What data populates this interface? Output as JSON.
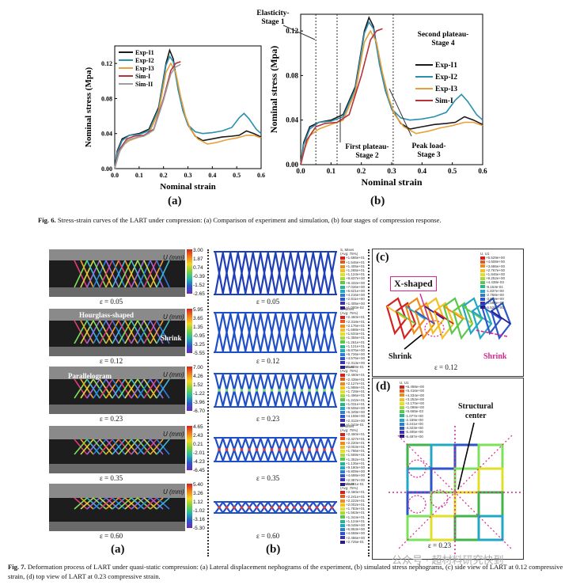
{
  "chart_data": [
    {
      "type": "line",
      "panel": "(a)",
      "xlabel": "Nominal strain",
      "ylabel": "Nominal stress (Mpa)",
      "xlim": [
        0,
        0.6
      ],
      "ylim": [
        0,
        0.14
      ],
      "xticks": [
        "0.0",
        "0.1",
        "0.2",
        "0.3",
        "0.4",
        "0.5",
        "0.6"
      ],
      "yticks": [
        "0.00",
        "0.04",
        "0.08",
        "0.12"
      ],
      "legend": "top-left",
      "series": [
        {
          "name": "Exp-I1",
          "color": "#1a1a1a",
          "x": [
            0,
            0.01,
            0.03,
            0.06,
            0.1,
            0.14,
            0.18,
            0.21,
            0.225,
            0.24,
            0.26,
            0.28,
            0.3,
            0.33,
            0.36,
            0.4,
            0.44,
            0.48,
            0.51,
            0.54,
            0.57,
            0.6
          ],
          "y": [
            0,
            0.02,
            0.034,
            0.038,
            0.04,
            0.045,
            0.07,
            0.12,
            0.135,
            0.125,
            0.09,
            0.066,
            0.05,
            0.037,
            0.032,
            0.034,
            0.036,
            0.037,
            0.038,
            0.043,
            0.04,
            0.036
          ]
        },
        {
          "name": "Exp-I2",
          "color": "#2a8fb0",
          "x": [
            0,
            0.01,
            0.03,
            0.06,
            0.1,
            0.14,
            0.18,
            0.21,
            0.225,
            0.24,
            0.26,
            0.28,
            0.3,
            0.33,
            0.36,
            0.4,
            0.44,
            0.48,
            0.51,
            0.53,
            0.55,
            0.58,
            0.6
          ],
          "y": [
            0,
            0.018,
            0.032,
            0.038,
            0.039,
            0.043,
            0.068,
            0.118,
            0.128,
            0.122,
            0.09,
            0.066,
            0.05,
            0.042,
            0.04,
            0.041,
            0.043,
            0.047,
            0.058,
            0.063,
            0.057,
            0.045,
            0.04
          ]
        },
        {
          "name": "Exp-I3",
          "color": "#e8a13a",
          "x": [
            0,
            0.01,
            0.03,
            0.06,
            0.1,
            0.14,
            0.18,
            0.21,
            0.23,
            0.25,
            0.27,
            0.29,
            0.31,
            0.34,
            0.38,
            0.42,
            0.46,
            0.5,
            0.54,
            0.57,
            0.6
          ],
          "y": [
            0,
            0.012,
            0.026,
            0.032,
            0.036,
            0.04,
            0.065,
            0.11,
            0.12,
            0.11,
            0.082,
            0.06,
            0.045,
            0.034,
            0.028,
            0.03,
            0.033,
            0.035,
            0.038,
            0.038,
            0.035
          ]
        },
        {
          "name": "Sim-I",
          "color": "#b8323a",
          "x": [
            0,
            0.02,
            0.05,
            0.08,
            0.12,
            0.16,
            0.2,
            0.23,
            0.25,
            0.27
          ],
          "y": [
            0,
            0.022,
            0.034,
            0.037,
            0.038,
            0.045,
            0.08,
            0.112,
            0.12,
            0.122
          ]
        },
        {
          "name": "Sim-II",
          "color": "#9e9e9e",
          "x": [
            0,
            0.02,
            0.05,
            0.08,
            0.12,
            0.16,
            0.2,
            0.23,
            0.25,
            0.27
          ],
          "y": [
            0,
            0.02,
            0.032,
            0.035,
            0.037,
            0.044,
            0.078,
            0.108,
            0.116,
            0.119
          ]
        }
      ]
    },
    {
      "type": "line",
      "panel": "(b)",
      "xlabel": "Nominal strain",
      "ylabel": "Nominal stress (Mpa)",
      "xlim": [
        0,
        0.6
      ],
      "ylim": [
        0,
        0.135
      ],
      "xticks": [
        "0.0",
        "0.1",
        "0.2",
        "0.3",
        "0.4",
        "0.5",
        "0.6"
      ],
      "yticks": [
        "0.00",
        "0.04",
        "0.08",
        "0.12"
      ],
      "legend": "right",
      "stage_lines": [
        0.05,
        0.12,
        0.305
      ],
      "annotations": [
        {
          "text": "Elasticity-\nStage 1"
        },
        {
          "text": "Second plateau-\nStage 4"
        },
        {
          "text": "First plateau-\nStage 2"
        },
        {
          "text": "Peak load-\nStage 3"
        }
      ],
      "series": [
        {
          "name": "Exp-I1",
          "color": "#1a1a1a",
          "x": [
            0,
            0.01,
            0.03,
            0.06,
            0.1,
            0.14,
            0.18,
            0.21,
            0.225,
            0.24,
            0.26,
            0.28,
            0.3,
            0.33,
            0.36,
            0.4,
            0.44,
            0.48,
            0.51,
            0.54,
            0.57,
            0.6
          ],
          "y": [
            0,
            0.02,
            0.034,
            0.038,
            0.04,
            0.045,
            0.07,
            0.12,
            0.132,
            0.124,
            0.09,
            0.066,
            0.05,
            0.037,
            0.032,
            0.034,
            0.036,
            0.037,
            0.038,
            0.043,
            0.04,
            0.036
          ]
        },
        {
          "name": "Exp-I2",
          "color": "#2a8fb0",
          "x": [
            0,
            0.01,
            0.03,
            0.06,
            0.1,
            0.14,
            0.18,
            0.21,
            0.225,
            0.24,
            0.26,
            0.28,
            0.3,
            0.33,
            0.36,
            0.4,
            0.44,
            0.48,
            0.51,
            0.53,
            0.55,
            0.58,
            0.6
          ],
          "y": [
            0,
            0.018,
            0.032,
            0.038,
            0.039,
            0.043,
            0.068,
            0.118,
            0.128,
            0.122,
            0.09,
            0.066,
            0.05,
            0.042,
            0.04,
            0.041,
            0.043,
            0.047,
            0.058,
            0.063,
            0.057,
            0.045,
            0.04
          ]
        },
        {
          "name": "Exp-I3",
          "color": "#e8a13a",
          "x": [
            0,
            0.01,
            0.03,
            0.06,
            0.1,
            0.14,
            0.18,
            0.21,
            0.23,
            0.25,
            0.27,
            0.29,
            0.31,
            0.34,
            0.38,
            0.42,
            0.46,
            0.5,
            0.54,
            0.57,
            0.6
          ],
          "y": [
            0,
            0.012,
            0.026,
            0.032,
            0.036,
            0.04,
            0.065,
            0.11,
            0.12,
            0.11,
            0.082,
            0.06,
            0.045,
            0.034,
            0.028,
            0.03,
            0.033,
            0.035,
            0.038,
            0.038,
            0.035
          ]
        },
        {
          "name": "Sim-I",
          "color": "#b8323a",
          "x": [
            0,
            0.02,
            0.05,
            0.08,
            0.12,
            0.16,
            0.2,
            0.23,
            0.25,
            0.27
          ],
          "y": [
            0,
            0.022,
            0.034,
            0.037,
            0.038,
            0.045,
            0.08,
            0.112,
            0.12,
            0.122
          ]
        }
      ]
    }
  ],
  "fig6": {
    "label_a": "(a)",
    "label_b": "(b)",
    "caption_bold": "Fig. 6.",
    "caption": "Stress-strain curves of the LART under compression: (a) Comparison of experiment and simulation, (b) four stages of compression response."
  },
  "fig7": {
    "label_a": "(a)",
    "label_b": "(b)",
    "label_c": "(c)",
    "label_d": "(d)",
    "caption_bold": "Fig. 7.",
    "caption": "Deformation process of LART under quasi-static compression: (a) Lateral displacement nephograms of the experiment, (b) simulated stress nephograms, (c) side view of LART at 0.12 compressive strain, (d) top view of LART at 0.23 compressive strain.",
    "u_title": "U (mm)",
    "rows": [
      {
        "eps": "ε = 0.05",
        "cb": [
          "3.00",
          "1.87",
          "0.74",
          "-0.39",
          "-1.52",
          "-2.65"
        ]
      },
      {
        "eps": "ε = 0.12",
        "cb": [
          "5.95",
          "3.65",
          "1.35",
          "-0.95",
          "-3.25",
          "-5.55"
        ]
      },
      {
        "eps": "ε = 0.23",
        "cb": [
          "7.00",
          "4.26",
          "1.52",
          "-1.22",
          "-3.96",
          "-6.70"
        ]
      },
      {
        "eps": "ε = 0.35",
        "cb": [
          "4.65",
          "2.43",
          "0.21",
          "-2.01",
          "-4.23",
          "-6.45"
        ]
      },
      {
        "eps": "ε = 0.60",
        "cb": [
          "5.40",
          "3.26",
          "1.12",
          "-1.02",
          "-3.16",
          "-5.30"
        ]
      }
    ],
    "annot_a": {
      "hourglass": "Hourglass-shaped",
      "shrink": "Shrink",
      "parallelogram": "Parallelogram"
    },
    "sim_legend_title": "S, Mises\n(Avg: 75%)",
    "sim_legend_values": [
      [
        "+1.686e+01",
        "+1.546e+01",
        "+1.405e+01",
        "+1.265e+01",
        "+1.124e+01",
        "+9.837e+00",
        "+8.432e+00",
        "+7.026e+00",
        "+5.621e+00",
        "+4.216e+00",
        "+2.811e+00",
        "+1.405e+00",
        "+1.000e-02"
      ],
      [
        "+2.460e+01",
        "+2.318e+01",
        "+2.176e+01",
        "+1.698e+01",
        "+1.534e+01",
        "+1.356e+01",
        "+1.261e+01",
        "+1.121e+01",
        "+8.876e+00",
        "+6.726e+00",
        "+4.576e+00",
        "+2.313e+00",
        "+1.609e-01"
      ],
      [
        "+2.460e+01",
        "+2.439e+01",
        "+2.127e+01",
        "+1.998e+01",
        "+1.728e+01",
        "+1.496e+01",
        "+1.242e+01",
        "+1.031e+01",
        "+8.506e+00",
        "+6.349e+00",
        "+4.159e+00",
        "+2.312e+00",
        "+1.043e-01"
      ],
      [
        "+2.460e+01",
        "+2.427e+01",
        "+2.220e+01",
        "+2.003e+01",
        "+1.786e+01",
        "+1.569e+01",
        "+1.352e+01",
        "+1.135e+01",
        "+9.180e+00",
        "+6.809e+00",
        "+4.698e+00",
        "+2.387e+00",
        "+2.091e-01"
      ],
      [
        "+2.460e+01",
        "+2.241e+01",
        "+2.222e+01",
        "+2.002e+01",
        "+1.783e+01",
        "+1.563e+01",
        "+1.344e+01",
        "+1.124e+01",
        "+9.049e+00",
        "+6.853e+00",
        "+4.658e+00",
        "+2.466e+00",
        "+2.725e-01"
      ]
    ],
    "panel_c": {
      "legend_title": "U, U1",
      "legend_values": [
        "+5.529e+00",
        "+4.608e+00",
        "+3.686e+00",
        "+2.767e+00",
        "+1.846e+00",
        "+9.252e+00",
        "+4.438e-03",
        "-9.163e-01",
        "-1.837e+00",
        "-2.758e+00",
        "-3.679e+00",
        "-4.599e+00",
        "-5.520e+00"
      ],
      "x_shaped": "X-shaped",
      "shrink_left": "Shrink",
      "shrink_right": "Shrink",
      "eps": "ε = 0.12"
    },
    "panel_d": {
      "legend_title": "U, U1",
      "legend_values": [
        "+6.498e+00",
        "+5.416e+00",
        "+4.334e+00",
        "+3.252e+00",
        "+2.170e+00",
        "+1.088e+00",
        "+5.665e-03",
        "-1.077e+00",
        "-2.159e+00",
        "-3.241e+00",
        "-4.323e+00",
        "-5.405e+00",
        "-6.487e+00"
      ],
      "structural_center": "Structural\ncenter",
      "eps": "ε = 0.23"
    },
    "watermark": "公众号 · 超材料研究快到"
  }
}
